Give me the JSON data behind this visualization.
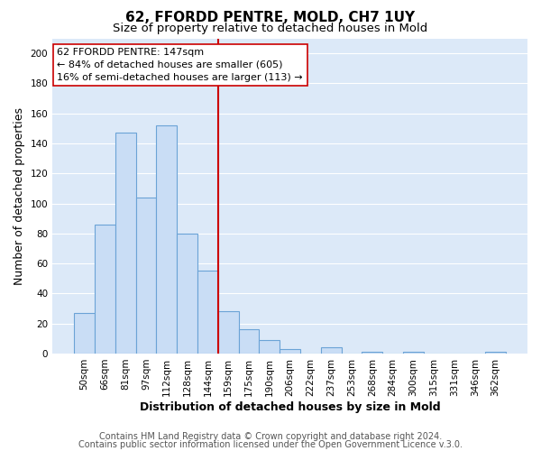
{
  "title": "62, FFORDD PENTRE, MOLD, CH7 1UY",
  "subtitle": "Size of property relative to detached houses in Mold",
  "xlabel": "Distribution of detached houses by size in Mold",
  "ylabel": "Number of detached properties",
  "bar_labels": [
    "50sqm",
    "66sqm",
    "81sqm",
    "97sqm",
    "112sqm",
    "128sqm",
    "144sqm",
    "159sqm",
    "175sqm",
    "190sqm",
    "206sqm",
    "222sqm",
    "237sqm",
    "253sqm",
    "268sqm",
    "284sqm",
    "300sqm",
    "315sqm",
    "331sqm",
    "346sqm",
    "362sqm"
  ],
  "bar_values": [
    27,
    86,
    147,
    104,
    152,
    80,
    55,
    28,
    16,
    9,
    3,
    0,
    4,
    0,
    1,
    0,
    1,
    0,
    0,
    0,
    1
  ],
  "bar_color": "#c9ddf5",
  "bar_edge_color": "#6ba3d6",
  "vline_x_index": 6.5,
  "vline_color": "#cc0000",
  "annotation_line1": "62 FFORDD PENTRE: 147sqm",
  "annotation_line2": "← 84% of detached houses are smaller (605)",
  "annotation_line3": "16% of semi-detached houses are larger (113) →",
  "annotation_box_color": "#ffffff",
  "annotation_box_edge": "#cc0000",
  "ylim": [
    0,
    210
  ],
  "yticks": [
    0,
    20,
    40,
    60,
    80,
    100,
    120,
    140,
    160,
    180,
    200
  ],
  "footer_line1": "Contains HM Land Registry data © Crown copyright and database right 2024.",
  "footer_line2": "Contains public sector information licensed under the Open Government Licence v.3.0.",
  "bg_color": "#ffffff",
  "plot_bg_color": "#dce9f8",
  "grid_color": "#ffffff",
  "title_fontsize": 11,
  "subtitle_fontsize": 9.5,
  "axis_label_fontsize": 9,
  "tick_fontsize": 7.5,
  "annotation_fontsize": 8,
  "footer_fontsize": 7
}
